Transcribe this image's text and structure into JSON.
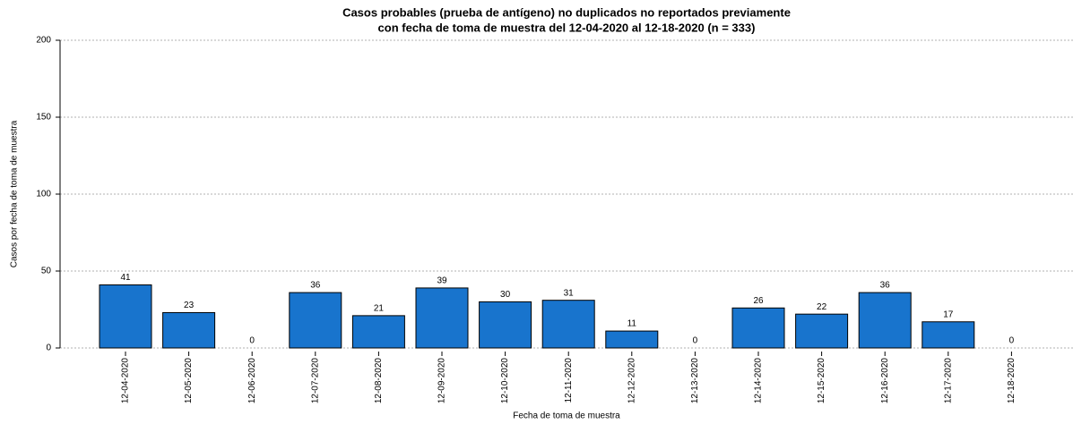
{
  "chart_data": {
    "type": "bar",
    "title": [
      "Casos probables (prueba de antígeno) no duplicados no reportados previamente",
      "con fecha de toma de muestra del 12-04-2020 al 12-18-2020 (n = 333)"
    ],
    "x_label": "Fecha de toma de muestra",
    "y_label": "Casos por fecha de toma de muestra",
    "categories": [
      "12-04-2020",
      "12-05-2020",
      "12-06-2020",
      "12-07-2020",
      "12-08-2020",
      "12-09-2020",
      "12-10-2020",
      "12-11-2020",
      "12-12-2020",
      "12-13-2020",
      "12-14-2020",
      "12-15-2020",
      "12-16-2020",
      "12-17-2020",
      "12-18-2020"
    ],
    "values": [
      41,
      23,
      0,
      36,
      21,
      39,
      30,
      31,
      11,
      0,
      26,
      22,
      36,
      17,
      0
    ],
    "color": "#1874cd",
    "ylim": [
      0,
      200
    ],
    "yticks": [
      0,
      50,
      100,
      150,
      200
    ],
    "grid": true
  }
}
